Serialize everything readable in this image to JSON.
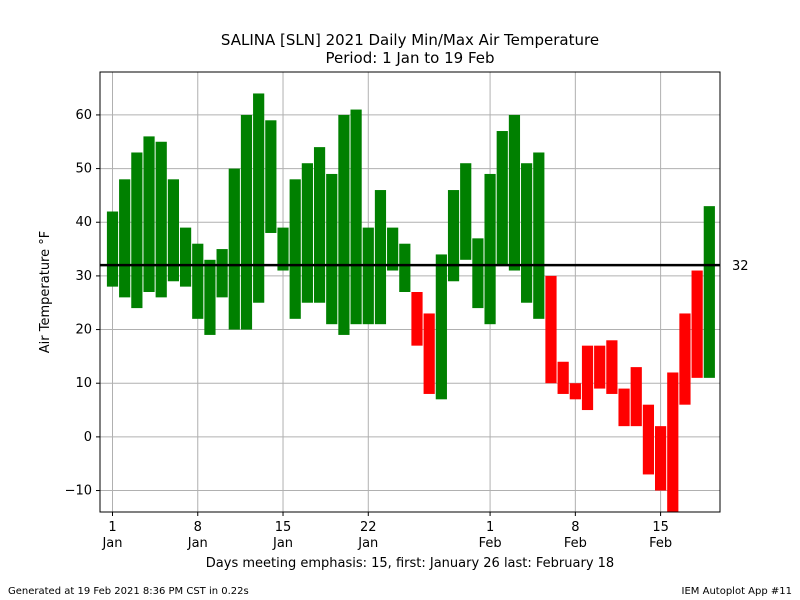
{
  "chart_data": {
    "type": "bar",
    "title": "SALINA [SLN] 2021 Daily Min/Max Air Temperature",
    "subtitle": "Period: 1 Jan to 19 Feb",
    "ylabel": "Air Temperature °F",
    "xlabel": "Days meeting emphasis: 15, first: January 26 last: February 18",
    "ylim": [
      -14,
      68
    ],
    "yticks": [
      -10,
      0,
      10,
      20,
      30,
      40,
      50,
      60
    ],
    "grid": true,
    "threshold": {
      "value": 32,
      "label": "32",
      "color": "#000000"
    },
    "colors": {
      "above": "#008000",
      "below": "#ff0000"
    },
    "x_ticks": [
      {
        "day": 1,
        "line1": "1",
        "line2": "Jan"
      },
      {
        "day": 8,
        "line1": "8",
        "line2": "Jan"
      },
      {
        "day": 15,
        "line1": "15",
        "line2": "Jan"
      },
      {
        "day": 22,
        "line1": "22",
        "line2": "Jan"
      },
      {
        "day": 32,
        "line1": "1",
        "line2": "Feb"
      },
      {
        "day": 39,
        "line1": "8",
        "line2": "Feb"
      },
      {
        "day": 46,
        "line1": "15",
        "line2": "Feb"
      }
    ],
    "days": [
      {
        "date": "Jan 1",
        "min": 28,
        "max": 42
      },
      {
        "date": "Jan 2",
        "min": 26,
        "max": 48
      },
      {
        "date": "Jan 3",
        "min": 24,
        "max": 53
      },
      {
        "date": "Jan 4",
        "min": 27,
        "max": 56
      },
      {
        "date": "Jan 5",
        "min": 26,
        "max": 55
      },
      {
        "date": "Jan 6",
        "min": 29,
        "max": 48
      },
      {
        "date": "Jan 7",
        "min": 28,
        "max": 39
      },
      {
        "date": "Jan 8",
        "min": 22,
        "max": 36
      },
      {
        "date": "Jan 9",
        "min": 19,
        "max": 33
      },
      {
        "date": "Jan 10",
        "min": 26,
        "max": 35
      },
      {
        "date": "Jan 11",
        "min": 20,
        "max": 50
      },
      {
        "date": "Jan 12",
        "min": 20,
        "max": 60
      },
      {
        "date": "Jan 13",
        "min": 25,
        "max": 64
      },
      {
        "date": "Jan 14",
        "min": 38,
        "max": 59
      },
      {
        "date": "Jan 15",
        "min": 31,
        "max": 39
      },
      {
        "date": "Jan 16",
        "min": 22,
        "max": 48
      },
      {
        "date": "Jan 17",
        "min": 25,
        "max": 51
      },
      {
        "date": "Jan 18",
        "min": 25,
        "max": 54
      },
      {
        "date": "Jan 19",
        "min": 21,
        "max": 49
      },
      {
        "date": "Jan 20",
        "min": 19,
        "max": 60
      },
      {
        "date": "Jan 21",
        "min": 21,
        "max": 61
      },
      {
        "date": "Jan 22",
        "min": 21,
        "max": 39
      },
      {
        "date": "Jan 23",
        "min": 21,
        "max": 46
      },
      {
        "date": "Jan 24",
        "min": 31,
        "max": 39
      },
      {
        "date": "Jan 25",
        "min": 27,
        "max": 36
      },
      {
        "date": "Jan 26",
        "min": 17,
        "max": 27
      },
      {
        "date": "Jan 27",
        "min": 8,
        "max": 23
      },
      {
        "date": "Jan 28",
        "min": 7,
        "max": 34
      },
      {
        "date": "Jan 29",
        "min": 29,
        "max": 46
      },
      {
        "date": "Jan 30",
        "min": 33,
        "max": 51
      },
      {
        "date": "Jan 31",
        "min": 24,
        "max": 37
      },
      {
        "date": "Feb 1",
        "min": 21,
        "max": 49
      },
      {
        "date": "Feb 2",
        "min": 32,
        "max": 57
      },
      {
        "date": "Feb 3",
        "min": 31,
        "max": 60
      },
      {
        "date": "Feb 4",
        "min": 25,
        "max": 51
      },
      {
        "date": "Feb 5",
        "min": 22,
        "max": 53
      },
      {
        "date": "Feb 6",
        "min": 10,
        "max": 30
      },
      {
        "date": "Feb 7",
        "min": 8,
        "max": 14
      },
      {
        "date": "Feb 8",
        "min": 7,
        "max": 10
      },
      {
        "date": "Feb 9",
        "min": 5,
        "max": 17
      },
      {
        "date": "Feb 10",
        "min": 9,
        "max": 17
      },
      {
        "date": "Feb 11",
        "min": 8,
        "max": 18
      },
      {
        "date": "Feb 12",
        "min": 2,
        "max": 9
      },
      {
        "date": "Feb 13",
        "min": 2,
        "max": 13
      },
      {
        "date": "Feb 14",
        "min": -7,
        "max": 6
      },
      {
        "date": "Feb 15",
        "min": -10,
        "max": 2
      },
      {
        "date": "Feb 16",
        "min": -14,
        "max": 12
      },
      {
        "date": "Feb 17",
        "min": 6,
        "max": 23
      },
      {
        "date": "Feb 18",
        "min": 11,
        "max": 31
      },
      {
        "date": "Feb 19",
        "min": 11,
        "max": 43
      }
    ]
  },
  "footer": {
    "left": "Generated at 19 Feb 2021 8:36 PM CST in 0.22s",
    "right": "IEM Autoplot App #11"
  }
}
